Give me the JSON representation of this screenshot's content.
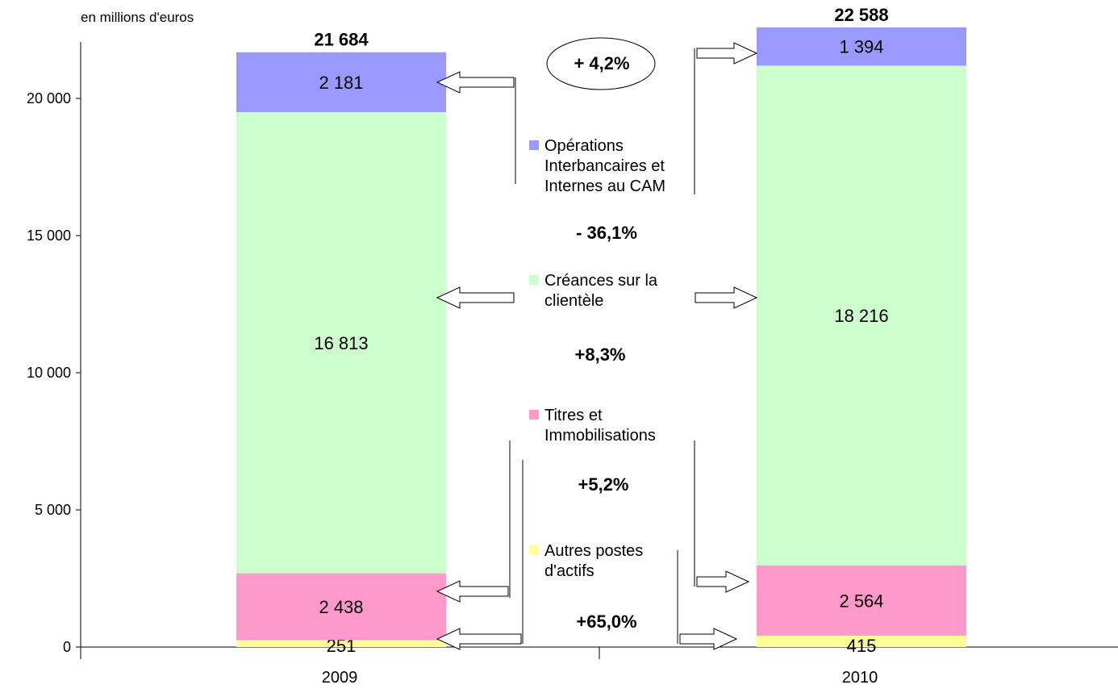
{
  "chart_data": {
    "type": "bar",
    "stacked": true,
    "unit_label": "en millions d'euros",
    "categories": [
      "2009",
      "2010"
    ],
    "series": [
      {
        "name": "Autres postes d'actifs",
        "color": "#ffff99",
        "values": [
          251,
          415
        ],
        "labels": [
          "251",
          "415"
        ]
      },
      {
        "name": "Titres et Immobilisations",
        "color": "#ff99cc",
        "values": [
          2438,
          2564
        ],
        "labels": [
          "2 438",
          "2 564"
        ]
      },
      {
        "name": "Créances sur la clientèle",
        "color": "#ccffcc",
        "values": [
          16813,
          18216
        ],
        "labels": [
          "16 813",
          "18 216"
        ]
      },
      {
        "name": "Opérations Interbancaires et Internes au CAM",
        "color": "#9999ff",
        "values": [
          2181,
          1394
        ],
        "labels": [
          "2 181",
          "1 394"
        ]
      }
    ],
    "totals": [
      21684,
      22588
    ],
    "total_labels": [
      "21 684",
      "22 588"
    ],
    "ylim": [
      0,
      22000
    ],
    "yticks": [
      0,
      5000,
      10000,
      15000,
      20000
    ],
    "ytick_labels": [
      "0",
      "5 000",
      "10 000",
      "15 000",
      "20 000"
    ],
    "legend": [
      {
        "lines": [
          "Opérations",
          "Interbancaires et",
          "Internes au CAM"
        ],
        "color": "#9999ff"
      },
      {
        "lines": [
          "Créances sur la",
          "clientèle"
        ],
        "color": "#ccffcc"
      },
      {
        "lines": [
          "Titres et",
          "Immobilisations"
        ],
        "color": "#ff99cc"
      },
      {
        "lines": [
          "Autres postes",
          "d'actifs"
        ],
        "color": "#ffff99"
      }
    ],
    "changes": {
      "total": "+ 4,2%",
      "interbancaires": "- 36,1%",
      "clientele": "+8,3%",
      "titres": "+5,2%",
      "autres": "+65,0%"
    }
  }
}
